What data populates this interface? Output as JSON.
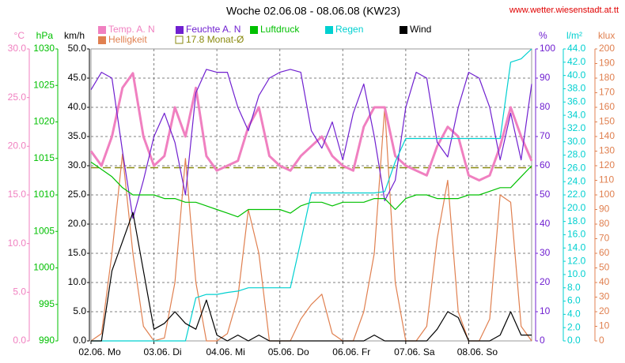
{
  "chart_data": {
    "type": "line",
    "title": "Woche 02.06.08 - 08.06.08 (KW23)",
    "source": "www.wetter.wiesenstadt.at.tt",
    "grid": true,
    "legend": "top",
    "xlim": [
      0,
      168
    ],
    "xticks": [
      {
        "value": 0,
        "label": "02.06. Mo"
      },
      {
        "value": 24,
        "label": "03.06. Di"
      },
      {
        "value": 48,
        "label": "04.06. Mi"
      },
      {
        "value": 72,
        "label": "05.06. Do"
      },
      {
        "value": 96,
        "label": "06.06. Fr"
      },
      {
        "value": 120,
        "label": "07.06. Sa"
      },
      {
        "value": 144,
        "label": "08.06. So"
      }
    ],
    "axes": [
      {
        "label": "°C",
        "color": "#f080c0",
        "side": "left",
        "ylim": [
          0,
          30
        ],
        "yticks": [
          {
            "value": 0,
            "label": "0.0"
          },
          {
            "value": 5,
            "label": "5.0"
          },
          {
            "value": 10,
            "label": "10.0"
          },
          {
            "value": 15,
            "label": "15.0"
          },
          {
            "value": 20,
            "label": "20.0"
          },
          {
            "value": 25,
            "label": "25.0"
          },
          {
            "value": 30,
            "label": "30.0"
          }
        ]
      },
      {
        "label": "hPa",
        "color": "#00c000",
        "side": "left",
        "ylim": [
          990,
          1030
        ],
        "yticks": [
          990,
          995,
          1000,
          1005,
          1010,
          1015,
          1020,
          1025,
          1030
        ]
      },
      {
        "label": "km/h",
        "color": "#000000",
        "side": "left",
        "ylim": [
          0,
          50
        ],
        "yticks": [
          {
            "value": 0,
            "label": "0.0"
          },
          {
            "value": 5,
            "label": "5.0"
          },
          {
            "value": 10,
            "label": "10.0"
          },
          {
            "value": 15,
            "label": "15.0"
          },
          {
            "value": 20,
            "label": "20.0"
          },
          {
            "value": 25,
            "label": "25.0"
          },
          {
            "value": 30,
            "label": "30.0"
          },
          {
            "value": 35,
            "label": "35.0"
          },
          {
            "value": 40,
            "label": "40.0"
          },
          {
            "value": 45,
            "label": "45.0"
          },
          {
            "value": 50,
            "label": "50.0"
          }
        ]
      },
      {
        "label": "%",
        "color": "#7020d0",
        "side": "right",
        "ylim": [
          0,
          100
        ],
        "yticks": [
          0,
          10,
          20,
          30,
          40,
          50,
          60,
          70,
          80,
          90,
          100
        ]
      },
      {
        "label": "l/m²",
        "color": "#00d0d0",
        "side": "right",
        "ylim": [
          0,
          44
        ],
        "yticks": [
          {
            "value": 0,
            "label": "0.0"
          },
          {
            "value": 2,
            "label": "2.0"
          },
          {
            "value": 4,
            "label": "4.0"
          },
          {
            "value": 6,
            "label": "6.0"
          },
          {
            "value": 8,
            "label": "8.0"
          },
          {
            "value": 10,
            "label": "10.0"
          },
          {
            "value": 12,
            "label": "12.0"
          },
          {
            "value": 14,
            "label": "14.0"
          },
          {
            "value": 16,
            "label": "16.0"
          },
          {
            "value": 18,
            "label": "18.0"
          },
          {
            "value": 20,
            "label": "20.0"
          },
          {
            "value": 22,
            "label": "22.0"
          },
          {
            "value": 24,
            "label": "24.0"
          },
          {
            "value": 26,
            "label": "26.0"
          },
          {
            "value": 28,
            "label": "28.0"
          },
          {
            "value": 30,
            "label": "30.0"
          },
          {
            "value": 32,
            "label": "32.0"
          },
          {
            "value": 34,
            "label": "34.0"
          },
          {
            "value": 36,
            "label": "36.0"
          },
          {
            "value": 38,
            "label": "38.0"
          },
          {
            "value": 40,
            "label": "40.0"
          },
          {
            "value": 42,
            "label": "42.0"
          },
          {
            "value": 44,
            "label": "44.0"
          }
        ]
      },
      {
        "label": "klux",
        "color": "#e08050",
        "side": "right",
        "ylim": [
          0,
          200
        ],
        "yticks": [
          0,
          10,
          20,
          30,
          40,
          50,
          60,
          70,
          80,
          90,
          100,
          110,
          120,
          130,
          140,
          150,
          160,
          170,
          180,
          190,
          200
        ]
      }
    ],
    "x": [
      0,
      4,
      8,
      12,
      16,
      20,
      24,
      28,
      32,
      36,
      40,
      44,
      48,
      52,
      56,
      60,
      64,
      68,
      72,
      76,
      80,
      84,
      88,
      92,
      96,
      100,
      104,
      108,
      112,
      116,
      120,
      124,
      128,
      132,
      136,
      140,
      144,
      148,
      152,
      156,
      160,
      164,
      168
    ],
    "series": [
      {
        "name": "Helligkeit",
        "color": "#e08050",
        "axis": 5,
        "values": [
          0,
          5,
          60,
          128,
          60,
          10,
          0,
          2,
          40,
          125,
          40,
          0,
          0,
          5,
          30,
          90,
          60,
          0,
          0,
          0,
          15,
          25,
          32,
          5,
          0,
          0,
          20,
          60,
          160,
          40,
          0,
          0,
          10,
          70,
          110,
          20,
          0,
          0,
          15,
          100,
          95,
          10,
          0
        ]
      },
      {
        "name": "Temp. A. N",
        "color": "#f080c0",
        "axis": 0,
        "width": 3,
        "values": [
          19.5,
          18,
          21,
          26,
          27.5,
          21,
          18,
          19,
          24,
          21,
          26,
          19,
          17.5,
          18,
          18.5,
          22,
          24,
          19,
          18,
          17.5,
          19,
          20,
          21,
          19,
          18,
          17.5,
          22,
          24,
          24,
          19,
          18,
          17.5,
          17,
          20,
          22,
          21,
          17,
          16.5,
          17,
          20,
          24,
          21,
          18.5
        ]
      },
      {
        "name": "Feuchte A. N",
        "color": "#7020d0",
        "axis": 3,
        "values": [
          86,
          92,
          90,
          65,
          42,
          55,
          70,
          78,
          68,
          50,
          85,
          93,
          92,
          92,
          80,
          72,
          84,
          90,
          92,
          93,
          92,
          72,
          66,
          75,
          62,
          78,
          88,
          70,
          48,
          55,
          80,
          92,
          90,
          68,
          63,
          80,
          92,
          90,
          80,
          62,
          78,
          62,
          88
        ]
      },
      {
        "name": "Luftdruck",
        "color": "#00c000",
        "axis": 1,
        "values": [
          1014.5,
          1013.5,
          1012.5,
          1011,
          1010,
          1010,
          1010,
          1009.5,
          1009.5,
          1009,
          1009,
          1008.5,
          1008,
          1007.5,
          1007,
          1008,
          1008,
          1008,
          1008,
          1007.5,
          1008.5,
          1009,
          1009,
          1008.5,
          1009,
          1009,
          1009,
          1009.5,
          1009.5,
          1008,
          1009.5,
          1010,
          1010,
          1009.5,
          1009.5,
          1009.5,
          1010,
          1010,
          1010.5,
          1011,
          1011,
          1012.5,
          1014
        ]
      },
      {
        "name": "Regen",
        "color": "#00d0d0",
        "axis": 4,
        "values": [
          0,
          0,
          0,
          0,
          0,
          0,
          0,
          0,
          0,
          0,
          6.5,
          7,
          7,
          7.3,
          7.5,
          8,
          8,
          8,
          8,
          8,
          15,
          22.3,
          22.3,
          22.3,
          22.3,
          22.3,
          22.3,
          22.3,
          22.5,
          27,
          30.5,
          30.5,
          30.5,
          30.5,
          30.5,
          30.5,
          30.5,
          30.5,
          30.5,
          30.5,
          42,
          42.5,
          44
        ]
      },
      {
        "name": "Wind",
        "color": "#000000",
        "axis": 2,
        "values": [
          0,
          0,
          12,
          17,
          22,
          12,
          2,
          3,
          5,
          3,
          2,
          7,
          1,
          0,
          1,
          0,
          1,
          0,
          0,
          0,
          0,
          0,
          0,
          0,
          0,
          0,
          0,
          1,
          0,
          0,
          0,
          0,
          0,
          2,
          5,
          4,
          0,
          0,
          0,
          1,
          5,
          1,
          1
        ]
      }
    ],
    "reference": {
      "value": 17.8,
      "label": "17.8 Monat-Ø",
      "color": "#8a8a10",
      "axis": 0
    }
  }
}
